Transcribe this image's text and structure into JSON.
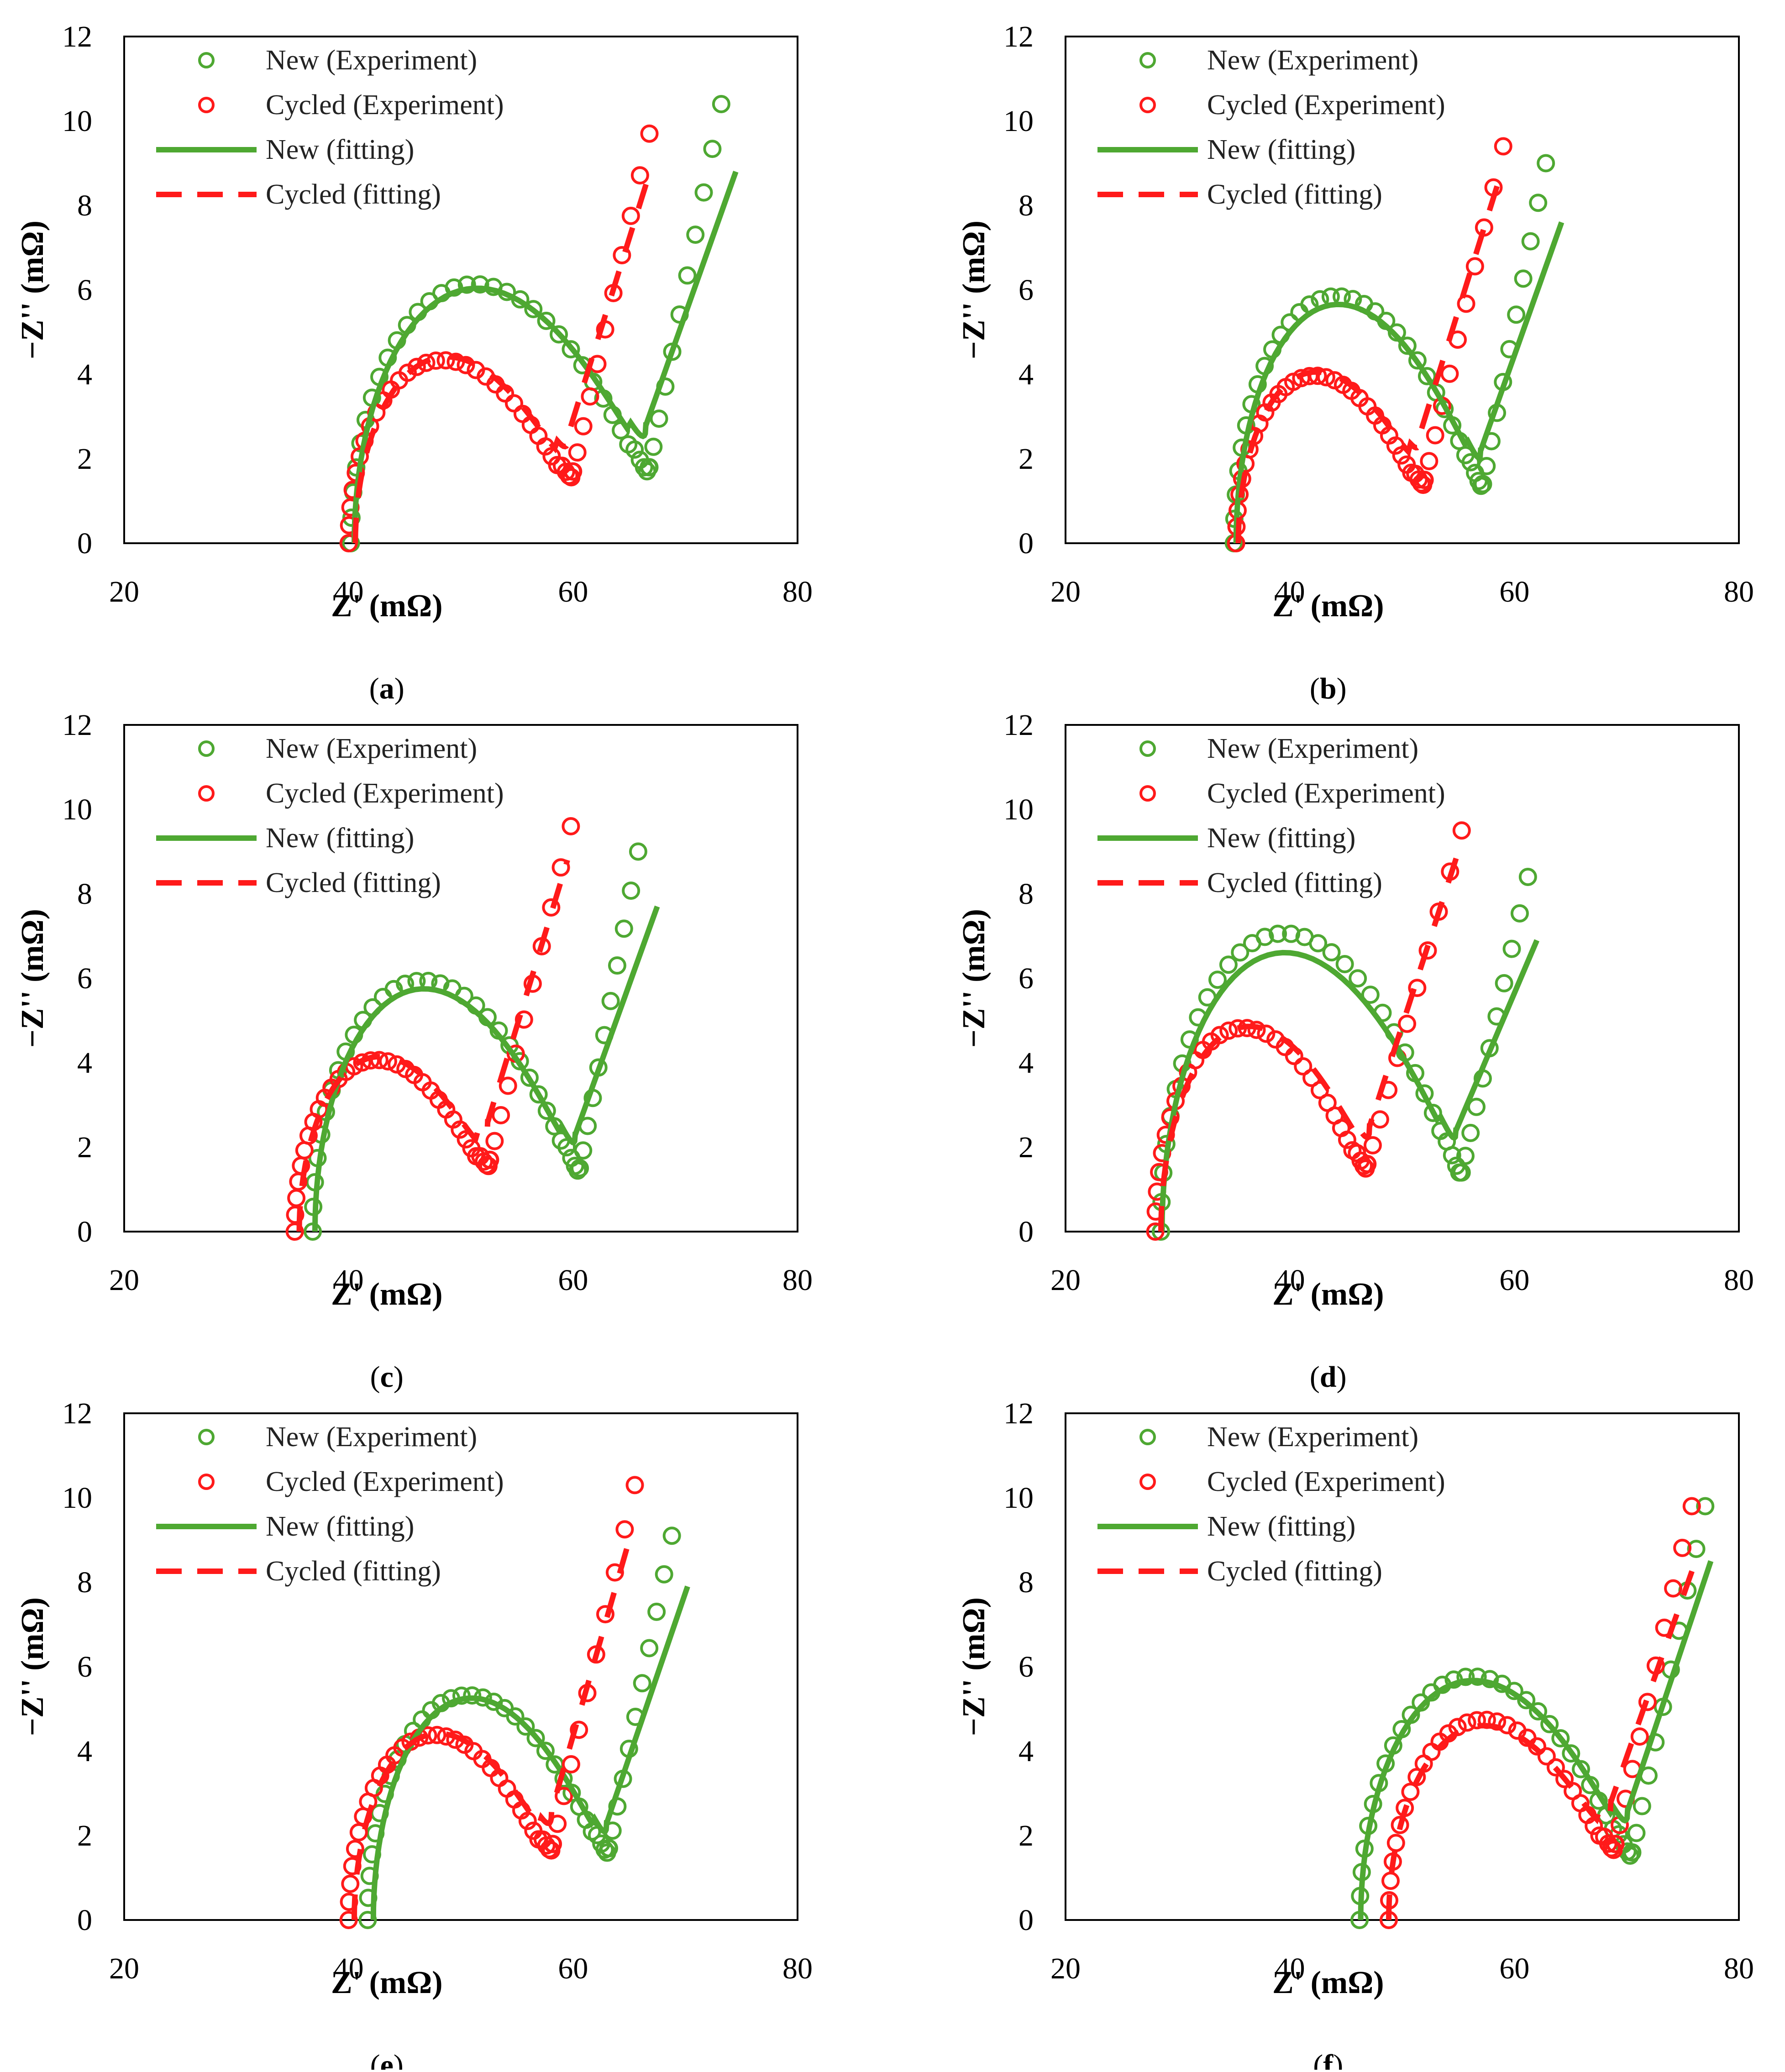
{
  "colors": {
    "new": "#4ea832",
    "cycled": "#ff1a1a",
    "axis": "#000000"
  },
  "legend": {
    "new_exp": "New (Experiment)",
    "cyc_exp": "Cycled (Experiment)",
    "new_fit": "New (fitting)",
    "cyc_fit": "Cycled (fitting)"
  },
  "chart_data": [
    {
      "id": "a",
      "type": "scatter",
      "label": "a",
      "xlabel": "Z' (mΩ)",
      "ylabel": "−Z'' (mΩ)",
      "xlim": [
        20,
        80
      ],
      "ylim": [
        0,
        12
      ],
      "xticks": [
        "20",
        "40",
        "60",
        "80"
      ],
      "yticks": [
        "0",
        "2",
        "4",
        "6",
        "8",
        "10",
        "12"
      ],
      "series": [
        {
          "name": "New (Experiment)",
          "kind": "exp",
          "R0": 40.2,
          "Rct": 26.6,
          "peak": 6.75,
          "minY": 1.8,
          "endX": 73.2,
          "endY": 10.4
        },
        {
          "name": "Cycled (Experiment)",
          "kind": "exp",
          "R0": 40.0,
          "Rct": 20.0,
          "peak": 4.75,
          "minY": 1.7,
          "endX": 66.8,
          "endY": 9.7
        },
        {
          "name": "New (fitting)",
          "kind": "fit",
          "R0": 40.5,
          "Rct": 26.0,
          "peak": 6.6,
          "minY": 2.8,
          "endX": 74.5,
          "endY": 8.8
        },
        {
          "name": "Cycled (fitting)",
          "kind": "fit",
          "R0": 40.6,
          "Rct": 19.0,
          "peak": 4.8,
          "minY": 2.6,
          "endX": 66.5,
          "endY": 8.5
        }
      ]
    },
    {
      "id": "b",
      "type": "scatter",
      "label": "b",
      "xlabel": "Z' (mΩ)",
      "ylabel": "−Z'' (mΩ)",
      "xlim": [
        20,
        80
      ],
      "ylim": [
        0,
        12
      ],
      "xticks": [
        "20",
        "40",
        "60",
        "80"
      ],
      "yticks": [
        "0",
        "2",
        "4",
        "6",
        "8",
        "10",
        "12"
      ],
      "series": [
        {
          "name": "New (Experiment)",
          "kind": "exp",
          "R0": 35.0,
          "Rct": 22.2,
          "peak": 6.45,
          "minY": 1.4,
          "endX": 62.8,
          "endY": 9.0
        },
        {
          "name": "Cycled (Experiment)",
          "kind": "exp",
          "R0": 35.2,
          "Rct": 16.8,
          "peak": 4.35,
          "minY": 1.5,
          "endX": 59.0,
          "endY": 9.4
        },
        {
          "name": "New (fitting)",
          "kind": "fit",
          "R0": 35.2,
          "Rct": 21.8,
          "peak": 6.2,
          "minY": 2.2,
          "endX": 64.2,
          "endY": 7.6
        },
        {
          "name": "Cycled (fitting)",
          "kind": "fit",
          "R0": 35.4,
          "Rct": 16.2,
          "peak": 4.4,
          "minY": 2.6,
          "endX": 58.5,
          "endY": 8.5
        }
      ]
    },
    {
      "id": "c",
      "type": "scatter",
      "label": "c",
      "xlabel": "Z' (mΩ)",
      "ylabel": "−Z'' (mΩ)",
      "xlim": [
        20,
        80
      ],
      "ylim": [
        0,
        12
      ],
      "xticks": [
        "20",
        "40",
        "60",
        "80"
      ],
      "yticks": [
        "0",
        "2",
        "4",
        "6",
        "8",
        "10",
        "12"
      ],
      "series": [
        {
          "name": "New (Experiment)",
          "kind": "exp",
          "R0": 36.8,
          "Rct": 23.8,
          "peak": 6.55,
          "minY": 1.5,
          "endX": 65.8,
          "endY": 9.0
        },
        {
          "name": "Cycled (Experiment)",
          "kind": "exp",
          "R0": 35.2,
          "Rct": 17.4,
          "peak": 4.45,
          "minY": 1.7,
          "endX": 59.8,
          "endY": 9.6
        },
        {
          "name": "New (fitting)",
          "kind": "fit",
          "R0": 37.0,
          "Rct": 23.2,
          "peak": 6.3,
          "minY": 2.3,
          "endX": 67.5,
          "endY": 7.7
        },
        {
          "name": "Cycled (fitting)",
          "kind": "fit",
          "R0": 35.6,
          "Rct": 16.8,
          "peak": 4.5,
          "minY": 2.6,
          "endX": 59.5,
          "endY": 8.8
        }
      ]
    },
    {
      "id": "d",
      "type": "scatter",
      "label": "d",
      "xlabel": "Z' (mΩ)",
      "ylabel": "−Z'' (mΩ)",
      "xlim": [
        20,
        80
      ],
      "ylim": [
        0,
        12
      ],
      "xticks": [
        "20",
        "40",
        "60",
        "80"
      ],
      "yticks": [
        "0",
        "2",
        "4",
        "6",
        "8",
        "10",
        "12"
      ],
      "series": [
        {
          "name": "New (Experiment)",
          "kind": "exp",
          "R0": 28.5,
          "Rct": 26.8,
          "peak": 7.8,
          "minY": 1.4,
          "endX": 61.2,
          "endY": 8.4
        },
        {
          "name": "Cycled (Experiment)",
          "kind": "exp",
          "R0": 28.0,
          "Rct": 18.9,
          "peak": 5.3,
          "minY": 1.6,
          "endX": 55.3,
          "endY": 9.5
        },
        {
          "name": "New (fitting)",
          "kind": "fit",
          "R0": 28.6,
          "Rct": 26.2,
          "peak": 7.25,
          "minY": 2.4,
          "endX": 62.0,
          "endY": 6.9
        },
        {
          "name": "Cycled (fitting)",
          "kind": "fit",
          "R0": 28.5,
          "Rct": 18.6,
          "peak": 5.3,
          "minY": 2.5,
          "endX": 55.0,
          "endY": 9.0
        }
      ]
    },
    {
      "id": "e",
      "type": "scatter",
      "label": "e",
      "xlabel": "Z' (mΩ)",
      "ylabel": "−Z'' (mΩ)",
      "xlim": [
        20,
        80
      ],
      "ylim": [
        0,
        12
      ],
      "xticks": [
        "20",
        "40",
        "60",
        "80"
      ],
      "yticks": [
        "0",
        "2",
        "4",
        "6",
        "8",
        "10",
        "12"
      ],
      "series": [
        {
          "name": "New (Experiment)",
          "kind": "exp",
          "R0": 41.7,
          "Rct": 21.5,
          "peak": 5.85,
          "minY": 1.7,
          "endX": 68.8,
          "endY": 9.1
        },
        {
          "name": "Cycled (Experiment)",
          "kind": "exp",
          "R0": 40.0,
          "Rct": 18.2,
          "peak": 4.8,
          "minY": 1.8,
          "endX": 65.5,
          "endY": 10.3
        },
        {
          "name": "New (fitting)",
          "kind": "fit",
          "R0": 42.2,
          "Rct": 20.8,
          "peak": 5.75,
          "minY": 2.3,
          "endX": 70.2,
          "endY": 7.9
        },
        {
          "name": "Cycled (fitting)",
          "kind": "fit",
          "R0": 40.5,
          "Rct": 17.6,
          "peak": 4.8,
          "minY": 2.6,
          "endX": 65.0,
          "endY": 9.0
        }
      ]
    },
    {
      "id": "f",
      "type": "scatter",
      "label": "f",
      "xlabel": "Z' (mΩ)",
      "ylabel": "−Z'' (mΩ)",
      "xlim": [
        20,
        80
      ],
      "ylim": [
        0,
        12
      ],
      "xticks": [
        "20",
        "40",
        "60",
        "80"
      ],
      "yticks": [
        "0",
        "2",
        "4",
        "6",
        "8",
        "10",
        "12"
      ],
      "series": [
        {
          "name": "New (Experiment)",
          "kind": "exp",
          "R0": 46.2,
          "Rct": 24.3,
          "peak": 6.35,
          "minY": 1.6,
          "endX": 77.0,
          "endY": 9.8
        },
        {
          "name": "Cycled (Experiment)",
          "kind": "exp",
          "R0": 48.8,
          "Rct": 20.2,
          "peak": 5.2,
          "minY": 1.8,
          "endX": 75.8,
          "endY": 9.8
        },
        {
          "name": "New (fitting)",
          "kind": "fit",
          "R0": 46.3,
          "Rct": 23.8,
          "peak": 6.2,
          "minY": 2.6,
          "endX": 77.5,
          "endY": 8.5
        },
        {
          "name": "Cycled (fitting)",
          "kind": "fit",
          "R0": 48.8,
          "Rct": 19.8,
          "peak": 5.0,
          "minY": 2.8,
          "endX": 76.0,
          "endY": 8.4
        }
      ]
    }
  ]
}
